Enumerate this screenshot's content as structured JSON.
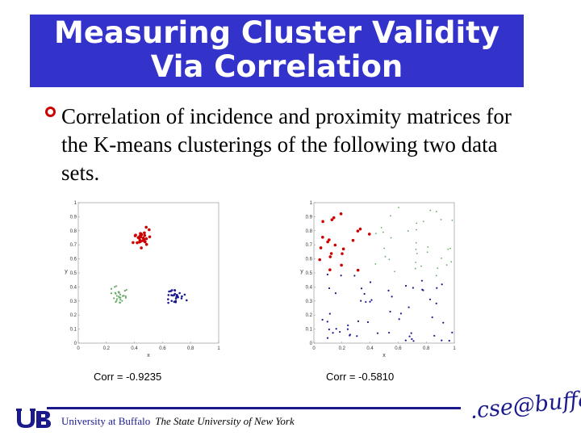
{
  "title": {
    "line1": "Measuring Cluster Validity",
    "line2": "Via Correlation"
  },
  "bullet": {
    "text": "Correlation of incidence and proximity matrices for the K-means clusterings of the following two data sets."
  },
  "colors": {
    "title_bg": "#3333cc",
    "red": "#cc0000",
    "green": "#66aa66",
    "blue": "#1a1a8c"
  },
  "plots": [
    {
      "xlabel": "x",
      "ylabel": "y",
      "corr": "Corr = -0.9235",
      "xticks": [
        "0",
        "0.2",
        "0.4",
        "0.6",
        "0.8",
        "1"
      ],
      "yticks": [
        "0",
        "0.1",
        "0.2",
        "0.3",
        "0.4",
        "0.5",
        "0.6",
        "0.7",
        "0.8",
        "0.9",
        "1"
      ]
    },
    {
      "xlabel": "x",
      "ylabel": "y",
      "corr": "Corr = -0.5810",
      "xticks": [
        "0",
        "0.2",
        "0.4",
        "0.6",
        "0.8",
        "1"
      ],
      "yticks": [
        "0",
        "0.1",
        "0.2",
        "0.3",
        "0.4",
        "0.5",
        "0.6",
        "0.7",
        "0.8",
        "0.9",
        "1"
      ]
    }
  ],
  "footer": {
    "university": "University at Buffalo",
    "subtitle": "The State University of New York",
    "cse_logo": ".cse@buffalo"
  }
}
